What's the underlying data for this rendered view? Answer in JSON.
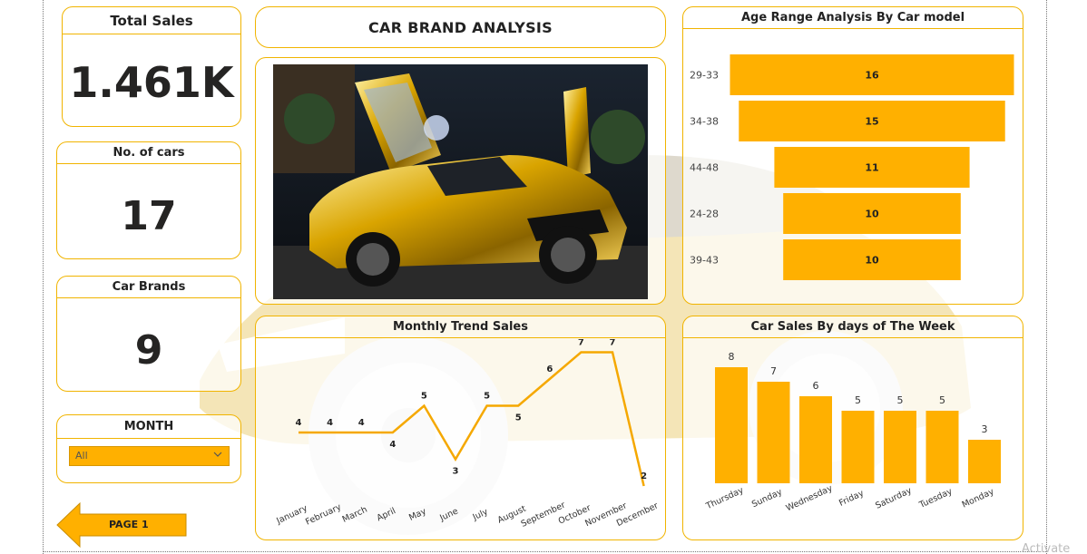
{
  "report": {
    "title": "CAR BRAND ANALYSIS"
  },
  "kpis": [
    {
      "title": "Total Sales",
      "value": "1.461K"
    },
    {
      "title": "No. of cars",
      "value": "17"
    },
    {
      "title": "Car Brands",
      "value": "9"
    }
  ],
  "filter": {
    "title": "MONTH",
    "selected": "All"
  },
  "navigation": {
    "page_button_label": "PAGE 1"
  },
  "watermark": "Activate",
  "colors": {
    "accent": "#ffb000",
    "border": "#f1b400",
    "line": "#f5a800"
  },
  "chart_data": [
    {
      "type": "bar",
      "orientation": "horizontal",
      "title": "Age Range Analysis By Car model",
      "categories": [
        "29-33",
        "34-38",
        "44-48",
        "24-28",
        "39-43"
      ],
      "values": [
        16,
        15,
        11,
        10,
        10
      ]
    },
    {
      "type": "line",
      "title": "Monthly Trend Sales",
      "categories": [
        "January",
        "February",
        "March",
        "April",
        "May",
        "June",
        "July",
        "August",
        "September",
        "October",
        "November",
        "December"
      ],
      "values": [
        4,
        4,
        4,
        4,
        5,
        3,
        5,
        5,
        6,
        7,
        7,
        2
      ]
    },
    {
      "type": "bar",
      "title": "Car Sales By days of The Week",
      "categories": [
        "Thursday",
        "Sunday",
        "Wednesday",
        "Friday",
        "Saturday",
        "Tuesday",
        "Monday"
      ],
      "values": [
        8,
        7,
        6,
        5,
        5,
        5,
        3
      ]
    }
  ]
}
